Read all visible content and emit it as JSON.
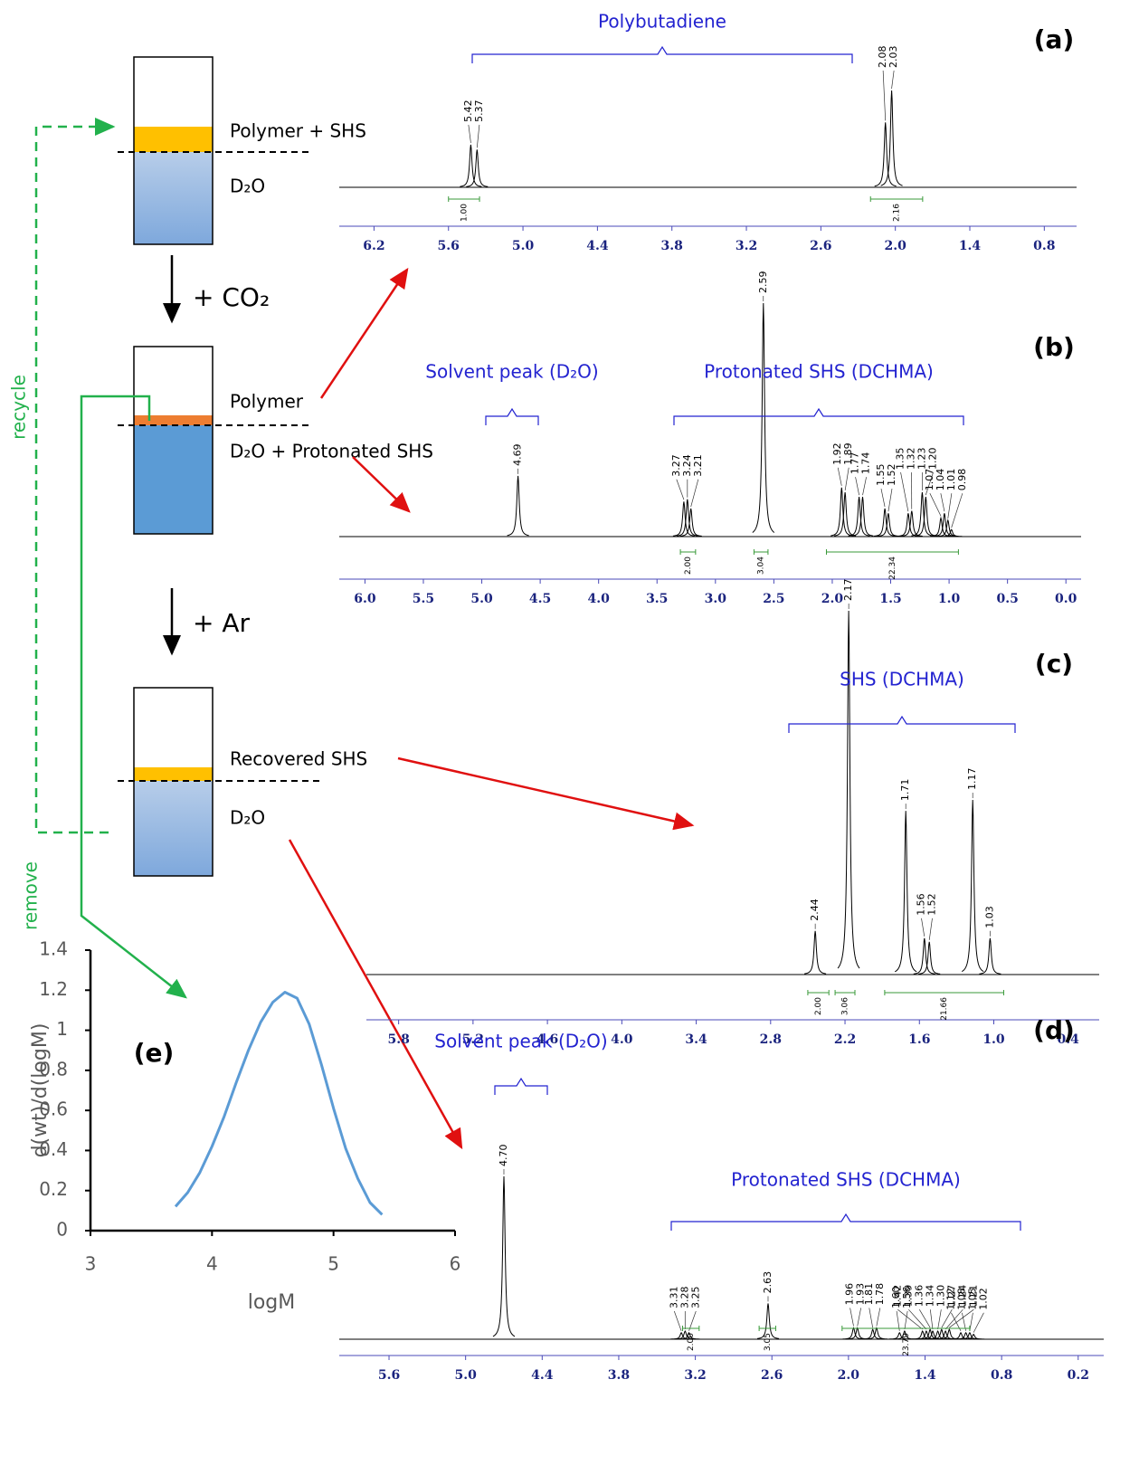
{
  "diagram": {
    "beakers": [
      {
        "top_label": "Polymer + SHS",
        "bottom_label": "D₂O"
      },
      {
        "top_label": "Polymer",
        "bottom_label": "D₂O + Protonated SHS"
      },
      {
        "top_label": "Recovered SHS",
        "bottom_label": "D₂O"
      }
    ],
    "steps": [
      "+ CO₂",
      "+ Ar"
    ],
    "recycle": "recycle",
    "remove": "remove"
  },
  "chart_data": [
    {
      "type": "nmr",
      "label": "(a)",
      "annotations": [
        "Polybutadiene"
      ],
      "xlim": [
        6.48,
        0.54
      ],
      "xticks": [
        6.2,
        5.6,
        {
          "value": 5,
          "label": "5.0"
        },
        4.4,
        3.8,
        3.2,
        2.6,
        {
          "value": 2,
          "label": "2.0"
        },
        1.4,
        0.8
      ],
      "peaks": [
        5.42,
        5.37,
        2.08,
        2.03
      ],
      "peak_labels": [
        "5.42",
        "5.37",
        "2.08",
        "2.03"
      ],
      "heights": [
        44,
        39,
        67,
        100
      ],
      "integrals": [
        {
          "range": [
            5.6,
            5.35
          ],
          "value": 1,
          "label": "1.00"
        },
        {
          "range": [
            2.2,
            1.78
          ],
          "value": 2.16,
          "label": "2.16"
        }
      ]
    },
    {
      "type": "nmr",
      "label": "(b)",
      "annotations": [
        "Solvent peak (D₂O)",
        "Protonated SHS (DCHMA)"
      ],
      "xlim": [
        6.22,
        -0.13
      ],
      "xticks": [
        {
          "value": 6,
          "label": "6.0"
        },
        5.5,
        {
          "value": 5,
          "label": "5.0"
        },
        4.5,
        {
          "value": 4,
          "label": "4.0"
        },
        3.5,
        {
          "value": 3,
          "label": "3.0"
        },
        2.5,
        {
          "value": 2,
          "label": "2.0"
        },
        1.5,
        {
          "value": 1,
          "label": "1.0"
        },
        0.5,
        {
          "value": 0,
          "label": "0.0"
        }
      ],
      "peaks": [
        4.69,
        3.27,
        3.24,
        3.21,
        2.59,
        1.92,
        1.89,
        1.77,
        1.74,
        1.55,
        1.52,
        1.35,
        1.32,
        1.23,
        1.2,
        1.07,
        1.04,
        1.01,
        0.98
      ],
      "peak_labels": [
        "4.69",
        "3.27",
        "3.24",
        "3.21",
        "2.59",
        "1.92",
        "1.89",
        "1.77",
        "1.74",
        "1.55",
        "1.52",
        "1.35",
        "1.32",
        "1.23",
        "1.20",
        "1.07",
        "1.04",
        "1.01",
        "0.98"
      ],
      "heights": [
        26,
        15,
        16,
        12,
        100,
        21,
        19,
        17,
        17,
        12,
        10,
        10,
        11,
        19,
        17,
        8,
        10,
        7,
        3
      ],
      "integrals": [
        {
          "range": [
            3.3,
            3.17
          ],
          "value": 2,
          "label": "2.00"
        },
        {
          "range": [
            2.67,
            2.55
          ],
          "value": 3.04,
          "label": "3.04"
        },
        {
          "range": [
            2.05,
            0.92
          ],
          "value": 22.34,
          "label": "22.34"
        }
      ]
    },
    {
      "type": "nmr",
      "label": "(c)",
      "annotations": [
        "SHS (DCHMA)"
      ],
      "xlim": [
        6.06,
        0.15
      ],
      "xticks": [
        5.8,
        5.2,
        4.6,
        {
          "value": 4,
          "label": "4.0"
        },
        3.4,
        2.8,
        2.2,
        1.6,
        {
          "value": 1,
          "label": "1.0"
        },
        0.4
      ],
      "peaks": [
        2.44,
        2.17,
        1.71,
        1.56,
        1.52,
        1.17,
        1.03
      ],
      "peak_labels": [
        "2.44",
        "2.17",
        "1.71",
        "1.56",
        "1.52",
        "1.17",
        "1.03"
      ],
      "heights": [
        12,
        100,
        45,
        10,
        9,
        48,
        10
      ],
      "integrals": [
        {
          "range": [
            2.5,
            2.33
          ],
          "value": 2,
          "label": "2.00"
        },
        {
          "range": [
            2.28,
            2.12
          ],
          "value": 3.06,
          "label": "3.06"
        },
        {
          "range": [
            1.88,
            0.92
          ],
          "value": 21.66,
          "label": "21.66"
        }
      ]
    },
    {
      "type": "nmr",
      "label": "(d)",
      "annotations": [
        "Solvent peak (D₂O)",
        "Protonated SHS (DCHMA)"
      ],
      "xlim": [
        5.99,
        0.0
      ],
      "xticks": [
        5.6,
        {
          "value": 5,
          "label": "5.0"
        },
        4.4,
        3.8,
        3.2,
        2.6,
        {
          "value": 2,
          "label": "2.0"
        },
        1.4,
        0.8,
        0.2
      ],
      "peaks": [
        4.7,
        3.31,
        3.28,
        3.25,
        2.63,
        1.96,
        1.93,
        1.81,
        1.78,
        1.6,
        1.56,
        1.42,
        1.39,
        1.36,
        1.34,
        1.3,
        1.27,
        1.24,
        1.21,
        1.12,
        1.08,
        1.05,
        1.02
      ],
      "peak_labels": [
        "4.70",
        "3.31",
        "3.28",
        "3.25",
        "2.63",
        "1.96",
        "1.93",
        "1.81",
        "1.78",
        "1.60",
        "1.56",
        "1.42",
        "1.39",
        "1.36",
        "1.34",
        "1.30",
        "1.27",
        "1.24",
        "1.21",
        "1.12",
        "1.08",
        "1.05",
        "1.02"
      ],
      "heights": [
        100,
        4,
        5,
        4,
        22,
        7,
        7,
        6,
        7,
        4,
        5,
        5,
        5,
        6,
        5,
        5,
        6,
        5,
        6,
        4,
        4,
        4,
        3
      ],
      "integrals": [
        {
          "range": [
            3.3,
            3.17
          ],
          "value": 2,
          "label": "2.00"
        },
        {
          "range": [
            2.7,
            2.57
          ],
          "value": 3.05,
          "label": "3.05"
        },
        {
          "range": [
            2.05,
            1.05
          ],
          "value": 23.79,
          "label": "23.79"
        }
      ]
    },
    {
      "type": "line",
      "label": "(e)",
      "xlabel": "logM",
      "ylabel": "d(wt)/d(logM)",
      "x": [
        3.7,
        3.8,
        3.9,
        4.0,
        4.1,
        4.2,
        4.3,
        4.4,
        4.5,
        4.6,
        4.7,
        4.8,
        4.9,
        5.0,
        5.1,
        5.2,
        5.3,
        5.4
      ],
      "values": [
        0.12,
        0.19,
        0.29,
        0.42,
        0.57,
        0.74,
        0.9,
        1.04,
        1.14,
        1.19,
        1.16,
        1.03,
        0.83,
        0.61,
        0.41,
        0.26,
        0.14,
        0.08
      ],
      "color": "#5b9bd5",
      "xlim": [
        3,
        6
      ],
      "xticks": [
        3,
        4,
        5,
        6
      ],
      "ylim": [
        0,
        1.4
      ],
      "yticks": [
        0,
        0.2,
        0.4,
        0.6,
        0.8,
        1,
        1.2,
        1.4
      ]
    }
  ]
}
